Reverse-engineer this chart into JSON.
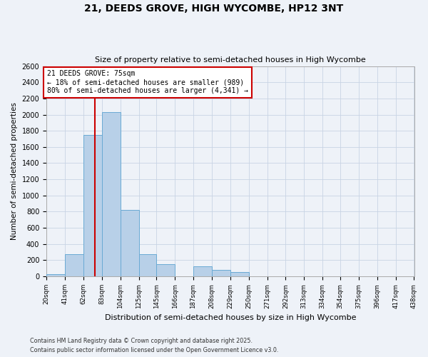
{
  "title": "21, DEEDS GROVE, HIGH WYCOMBE, HP12 3NT",
  "subtitle": "Size of property relative to semi-detached houses in High Wycombe",
  "xlabel": "Distribution of semi-detached houses by size in High Wycombe",
  "ylabel": "Number of semi-detached properties",
  "property_label": "21 DEEDS GROVE: 75sqm",
  "smaller_pct": 18,
  "smaller_n": 989,
  "larger_pct": 80,
  "larger_n": 4341,
  "bin_edges": [
    20,
    41,
    62,
    83,
    104,
    125,
    145,
    166,
    187,
    208,
    229,
    250,
    271,
    292,
    313,
    334,
    354,
    375,
    396,
    417,
    438
  ],
  "bin_counts": [
    30,
    270,
    1750,
    2030,
    820,
    270,
    155,
    0,
    120,
    80,
    50,
    0,
    0,
    0,
    0,
    0,
    0,
    0,
    0,
    0
  ],
  "bar_color": "#b8d0e8",
  "bar_edge_color": "#6aaad4",
  "vline_color": "#cc0000",
  "vline_x": 75,
  "annotation_box_edgecolor": "#cc0000",
  "grid_color": "#c8d4e4",
  "bg_color": "#eef2f8",
  "ylim_max": 2600,
  "yticks": [
    0,
    200,
    400,
    600,
    800,
    1000,
    1200,
    1400,
    1600,
    1800,
    2000,
    2200,
    2400,
    2600
  ],
  "footnote1": "Contains HM Land Registry data © Crown copyright and database right 2025.",
  "footnote2": "Contains public sector information licensed under the Open Government Licence v3.0."
}
